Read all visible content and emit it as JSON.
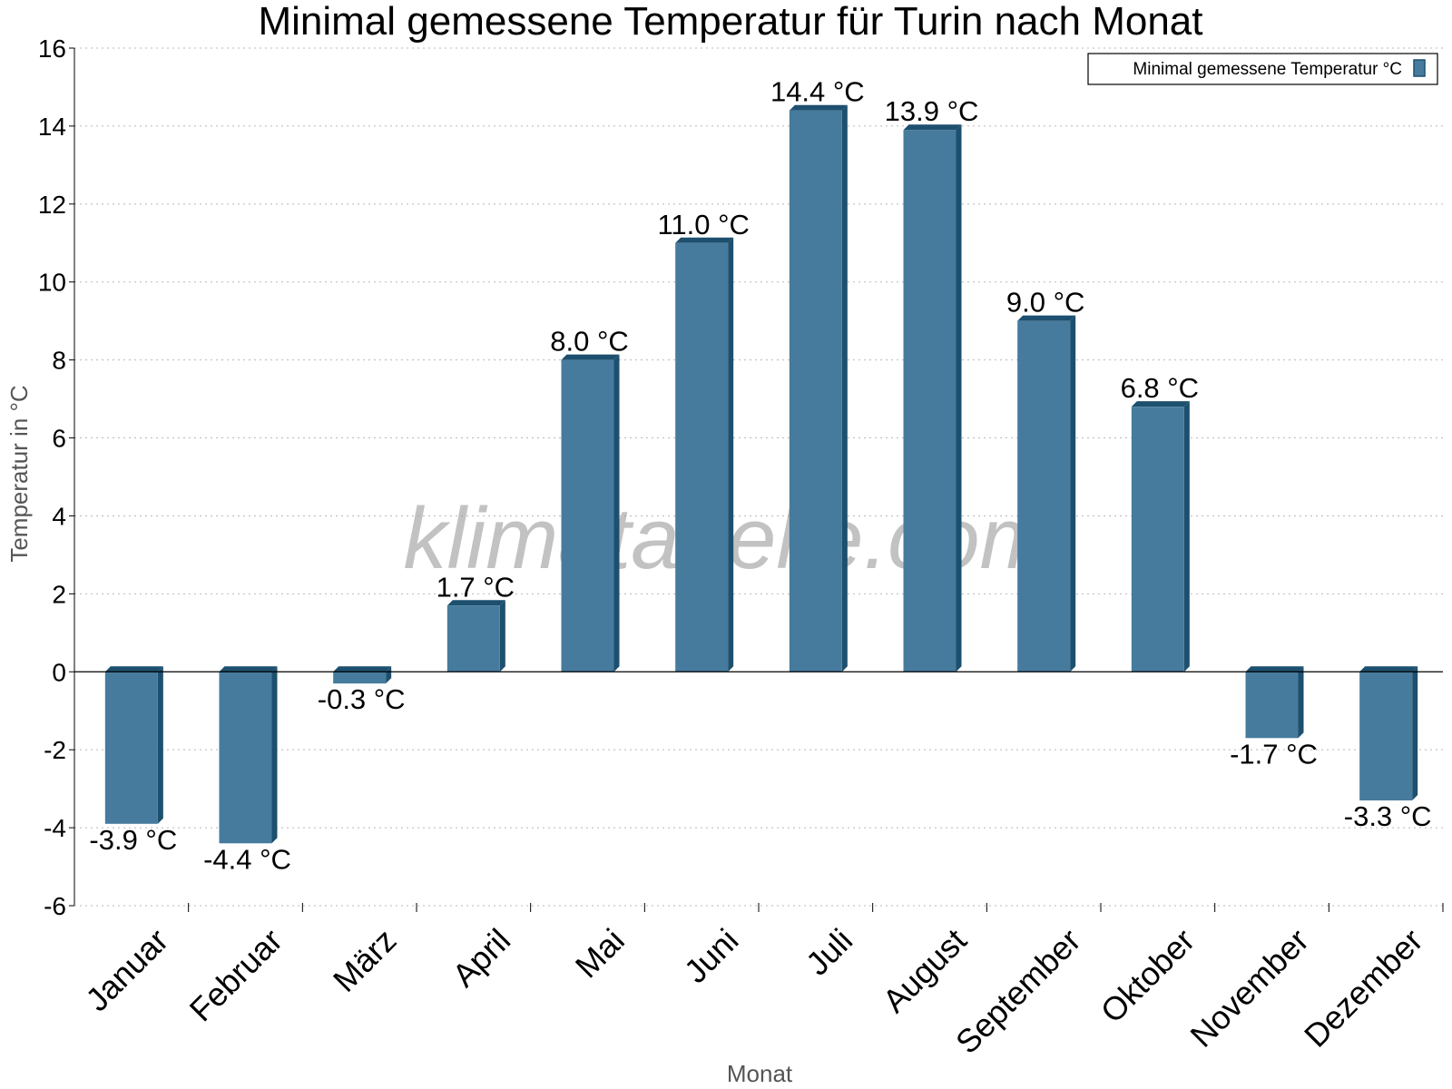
{
  "chart_data": {
    "type": "bar",
    "title": "Minimal gemessene Temperatur für Turin nach Monat",
    "xlabel": "Monat",
    "ylabel": "Temperatur in °C",
    "ylim": [
      -6,
      16
    ],
    "yticks": [
      16,
      14,
      12,
      10,
      8,
      6,
      4,
      2,
      0,
      -2,
      -4,
      -6
    ],
    "ytick_labels": [
      "16",
      "14",
      "12",
      "10",
      "8",
      "6",
      "4",
      "2",
      "0",
      "-2",
      "-4",
      "-6"
    ],
    "grid": true,
    "legend_position": "top-right",
    "categories": [
      "Januar",
      "Februar",
      "März",
      "April",
      "Mai",
      "Juni",
      "Juli",
      "August",
      "September",
      "Oktober",
      "November",
      "Dezember"
    ],
    "series": [
      {
        "name": "Minimal gemessene Temperatur °C",
        "values": [
          -3.9,
          -4.4,
          -0.3,
          1.7,
          8.0,
          11.0,
          14.4,
          13.9,
          9.0,
          6.8,
          -1.7,
          -3.3
        ],
        "data_labels": [
          "-3.9 °C",
          "-4.4 °C",
          "-0.3 °C",
          "1.7 °C",
          "8.0 °C",
          "11.0 °C",
          "14.4 °C",
          "13.9 °C",
          "9.0 °C",
          "6.8 °C",
          "-1.7 °C",
          "-3.3 °C"
        ],
        "color": "#467b9d",
        "edge_color": "#1d4f6e"
      }
    ],
    "watermark": "klimatabelle.com"
  }
}
